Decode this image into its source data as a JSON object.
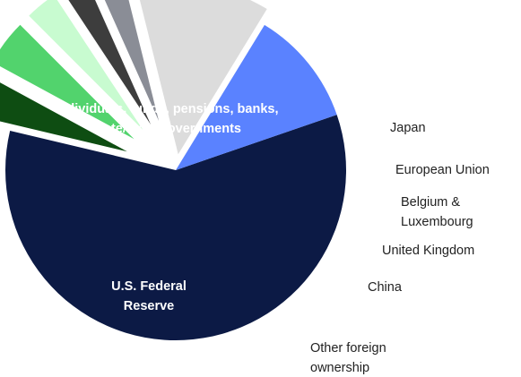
{
  "chart_data": {
    "type": "pie",
    "title": "",
    "exploded": true,
    "slices": [
      {
        "label_lines": [
          "Individuals, funds, pensions, banks,",
          "state/local governments"
        ],
        "value": 59,
        "color": "#0c1a45",
        "label_placement": "inside"
      },
      {
        "label_lines": [
          "Japan"
        ],
        "value": 4.2,
        "color": "#0e4d12",
        "label_placement": "outside"
      },
      {
        "label_lines": [
          "European Union"
        ],
        "value": 4.6,
        "color": "#52d36d",
        "label_placement": "outside"
      },
      {
        "label_lines": [
          "Belgium &",
          "Luxembourg"
        ],
        "value": 3.2,
        "color": "#c8fbd0",
        "label_placement": "outside"
      },
      {
        "label_lines": [
          "United Kingdom"
        ],
        "value": 2.6,
        "color": "#3d3d3d",
        "label_placement": "outside"
      },
      {
        "label_lines": [
          "China"
        ],
        "value": 2.8,
        "color": "#8a8d96",
        "label_placement": "outside"
      },
      {
        "label_lines": [
          "Other foreign",
          "ownership"
        ],
        "value": 12.6,
        "color": "#dcdcdc",
        "label_placement": "outside"
      },
      {
        "label_lines": [
          "U.S. Federal",
          "Reserve"
        ],
        "value": 11.0,
        "color": "#5a82ff",
        "label_placement": "inside"
      }
    ]
  }
}
